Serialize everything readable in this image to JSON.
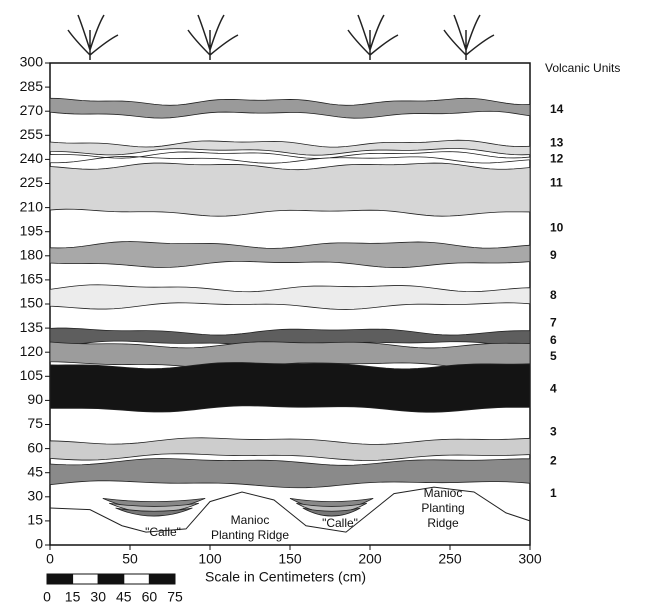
{
  "axes": {
    "yticks": [
      0,
      15,
      30,
      45,
      60,
      75,
      90,
      105,
      120,
      135,
      150,
      165,
      180,
      195,
      210,
      225,
      240,
      255,
      270,
      285,
      300
    ],
    "xticks": [
      0,
      50,
      100,
      150,
      200,
      250,
      300
    ],
    "xlabel": "Scale in Centimeters (cm)"
  },
  "units": {
    "title": "Volcanic Units",
    "labels": [
      14,
      13,
      12,
      11,
      10,
      9,
      8,
      7,
      6,
      5,
      4,
      3,
      2,
      1
    ]
  },
  "annotations": [
    [
      "\"Calle\""
    ],
    [
      "Manioc",
      "Planting Ridge"
    ],
    [
      "\"Calle\""
    ],
    [
      "Manioc",
      "Planting",
      "Ridge"
    ]
  ],
  "scale_bar": [
    0,
    15,
    30,
    45,
    60,
    75
  ]
}
